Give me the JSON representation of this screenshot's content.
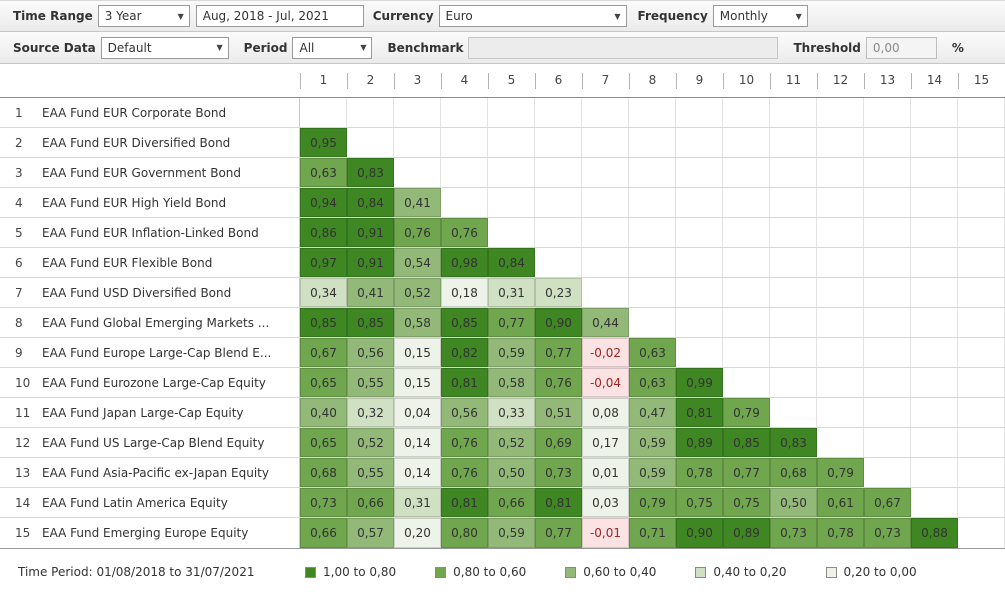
{
  "toolbar_primary": {
    "time_range_label": "Time Range",
    "time_range_value": "3 Year",
    "date_range_value": "Aug, 2018 - Jul, 2021",
    "currency_label": "Currency",
    "currency_value": "Euro",
    "frequency_label": "Frequency",
    "frequency_value": "Monthly"
  },
  "toolbar_secondary": {
    "source_data_label": "Source Data",
    "source_data_value": "Default",
    "period_label": "Period",
    "period_value": "All",
    "benchmark_label": "Benchmark",
    "benchmark_value": "",
    "threshold_label": "Threshold",
    "threshold_value": "0,00",
    "threshold_unit": "%"
  },
  "matrix": {
    "column_headers": [
      "1",
      "2",
      "3",
      "4",
      "5",
      "6",
      "7",
      "8",
      "9",
      "10",
      "11",
      "12",
      "13",
      "14",
      "15"
    ],
    "rows": [
      {
        "num": "1",
        "name": "EAA Fund EUR Corporate Bond",
        "values": []
      },
      {
        "num": "2",
        "name": "EAA Fund EUR Diversified Bond",
        "values": [
          "0,95"
        ]
      },
      {
        "num": "3",
        "name": "EAA Fund EUR Government Bond",
        "values": [
          "0,63",
          "0,83"
        ]
      },
      {
        "num": "4",
        "name": "EAA Fund EUR High Yield Bond",
        "values": [
          "0,94",
          "0,84",
          "0,41"
        ]
      },
      {
        "num": "5",
        "name": "EAA Fund EUR Inflation-Linked Bond",
        "values": [
          "0,86",
          "0,91",
          "0,76",
          "0,76"
        ]
      },
      {
        "num": "6",
        "name": "EAA Fund EUR Flexible Bond",
        "values": [
          "0,97",
          "0,91",
          "0,54",
          "0,98",
          "0,84"
        ]
      },
      {
        "num": "7",
        "name": "EAA Fund USD Diversified Bond",
        "values": [
          "0,34",
          "0,41",
          "0,52",
          "0,18",
          "0,31",
          "0,23"
        ]
      },
      {
        "num": "8",
        "name": "EAA Fund Global Emerging Markets ...",
        "values": [
          "0,85",
          "0,85",
          "0,58",
          "0,85",
          "0,77",
          "0,90",
          "0,44"
        ]
      },
      {
        "num": "9",
        "name": "EAA Fund Europe Large-Cap Blend E...",
        "values": [
          "0,67",
          "0,56",
          "0,15",
          "0,82",
          "0,59",
          "0,77",
          "-0,02",
          "0,63"
        ]
      },
      {
        "num": "10",
        "name": "EAA Fund Eurozone Large-Cap Equity",
        "values": [
          "0,65",
          "0,55",
          "0,15",
          "0,81",
          "0,58",
          "0,76",
          "-0,04",
          "0,63",
          "0,99"
        ]
      },
      {
        "num": "11",
        "name": "EAA Fund Japan Large-Cap Equity",
        "values": [
          "0,40",
          "0,32",
          "0,04",
          "0,56",
          "0,33",
          "0,51",
          "0,08",
          "0,47",
          "0,81",
          "0,79"
        ]
      },
      {
        "num": "12",
        "name": "EAA Fund US Large-Cap Blend Equity",
        "values": [
          "0,65",
          "0,52",
          "0,14",
          "0,76",
          "0,52",
          "0,69",
          "0,17",
          "0,59",
          "0,89",
          "0,85",
          "0,83"
        ]
      },
      {
        "num": "13",
        "name": "EAA Fund Asia-Pacific ex-Japan Equity",
        "values": [
          "0,68",
          "0,55",
          "0,14",
          "0,76",
          "0,50",
          "0,73",
          "0,01",
          "0,59",
          "0,78",
          "0,77",
          "0,68",
          "0,79"
        ]
      },
      {
        "num": "14",
        "name": "EAA Fund Latin America Equity",
        "values": [
          "0,73",
          "0,66",
          "0,31",
          "0,81",
          "0,66",
          "0,81",
          "0,03",
          "0,79",
          "0,75",
          "0,75",
          "0,50",
          "0,61",
          "0,67"
        ]
      },
      {
        "num": "15",
        "name": "EAA Fund Emerging Europe Equity",
        "values": [
          "0,66",
          "0,57",
          "0,20",
          "0,80",
          "0,59",
          "0,77",
          "-0,01",
          "0,71",
          "0,90",
          "0,89",
          "0,73",
          "0,78",
          "0,73",
          "0,88"
        ]
      }
    ]
  },
  "legend": {
    "time_period": "Time Period: 01/08/2018 to 31/07/2021",
    "items": [
      {
        "label": "1,00 to 0,80",
        "band": "b5"
      },
      {
        "label": "0,80 to 0,60",
        "band": "b4"
      },
      {
        "label": "0,60 to 0,40",
        "band": "b3"
      },
      {
        "label": "0,40 to 0,20",
        "band": "b2"
      },
      {
        "label": "0,20 to 0,00",
        "band": "b1"
      }
    ]
  },
  "colors": {
    "b5": "#3e8723",
    "b4": "#6fa64e",
    "b3": "#92b977",
    "b2": "#cfe0c3",
    "b1": "#edf3e8",
    "neg_bg": "#fbe3e3",
    "neg_text": "#a02424"
  }
}
